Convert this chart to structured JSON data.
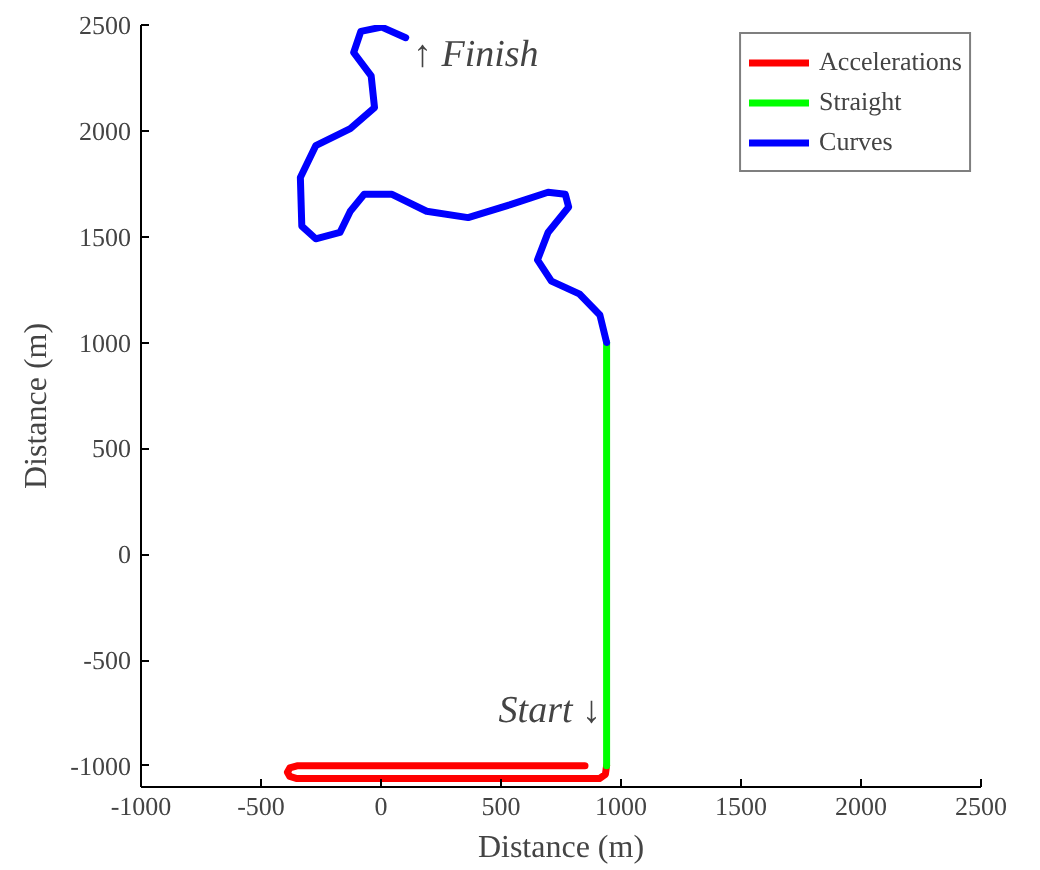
{
  "chart_data": {
    "type": "line",
    "xlabel": "Distance (m)",
    "ylabel": "Distance (m)",
    "xlim": [
      -1000,
      2500
    ],
    "ylim": [
      -1100,
      2500
    ],
    "xticks": [
      -1000,
      -500,
      0,
      500,
      1000,
      1500,
      2000,
      2500
    ],
    "yticks": [
      -1000,
      -500,
      0,
      500,
      1000,
      1500,
      2000,
      2500
    ],
    "grid": false,
    "legend": "top right",
    "marker": "none",
    "line_style": "solid",
    "series": [
      {
        "name": "Accelerations",
        "color": "#ff0000",
        "x": [
          850,
          300,
          -350,
          -380,
          -390,
          -380,
          -350,
          300,
          910,
          935,
          940
        ],
        "values": [
          -1000,
          -1000,
          -1000,
          -1010,
          -1030,
          -1050,
          -1060,
          -1060,
          -1060,
          -1040,
          -1000
        ]
      },
      {
        "name": "Straight",
        "color": "#00ff00",
        "x": [
          940,
          940
        ],
        "values": [
          -1000,
          1000
        ]
      },
      {
        "name": "Curves",
        "color": "#0000ff",
        "x": [
          940,
          912,
          826,
          710,
          652,
          696,
          782,
          768,
          696,
          536,
          363,
          190,
          46,
          -70,
          -128,
          -171,
          -272,
          -330,
          -336,
          -272,
          -128,
          -27,
          -41,
          -114,
          -84,
          3,
          103
        ],
        "values": [
          1000,
          1130,
          1230,
          1290,
          1390,
          1520,
          1640,
          1700,
          1710,
          1650,
          1590,
          1620,
          1700,
          1700,
          1620,
          1520,
          1490,
          1550,
          1780,
          1930,
          2010,
          2110,
          2260,
          2370,
          2470,
          2490,
          2440
        ]
      }
    ],
    "annotations": [
      "↑ Finish",
      "Start ↓"
    ]
  }
}
